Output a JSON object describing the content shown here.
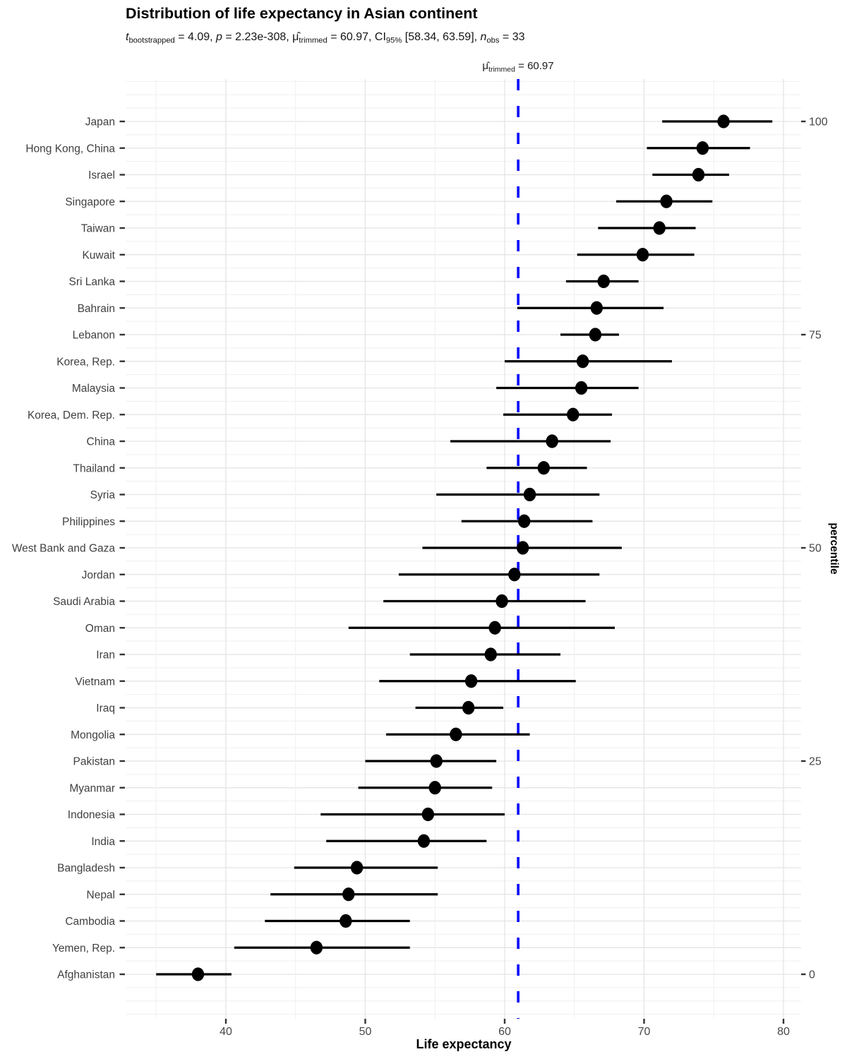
{
  "title": "Distribution of life expectancy in Asian continent",
  "subtitle_segments": [
    {
      "t": "t",
      "s": "i"
    },
    {
      "t": "bootstrapped",
      "s": "sub"
    },
    {
      "t": " = 4.09, "
    },
    {
      "t": "p",
      "s": "i"
    },
    {
      "t": " = 2.23e-308, "
    },
    {
      "t": "μ̂"
    },
    {
      "t": "trimmed",
      "s": "sub"
    },
    {
      "t": " = 60.97, CI"
    },
    {
      "t": "95%",
      "s": "sub"
    },
    {
      "t": " [58.34, 63.59], "
    },
    {
      "t": "n",
      "s": "i"
    },
    {
      "t": "obs",
      "s": "sub"
    },
    {
      "t": " = 33"
    }
  ],
  "reference_label_segments": [
    {
      "t": "μ̂"
    },
    {
      "t": "trimmed",
      "s": "sub"
    },
    {
      "t": " = 60.97"
    }
  ],
  "stats": {
    "t_bootstrapped": 4.09,
    "p_value": "2.23e-308",
    "mu_trimmed": 60.97,
    "ci95_low": 58.34,
    "ci95_high": 63.59,
    "n_obs": 33
  },
  "colors": {
    "reference_line": "#0000ff",
    "point": "#000000",
    "ci_line": "#000000",
    "grid_major": "#e3e3e3",
    "grid_minor": "#efefef",
    "axis_text": "#474747",
    "tick_mark": "#333333",
    "country_label": "#404040"
  },
  "chart_data": {
    "type": "scatter",
    "subtype": "horizontal-dot-plot-with-ci-error-bars",
    "title": "Distribution of life expectancy in Asian continent",
    "xlabel": "Life expectancy",
    "ylabel_right": "percentile",
    "x_ticks": [
      40,
      50,
      60,
      70,
      80
    ],
    "x_minor_gridlines": [
      35,
      45,
      55,
      65,
      75
    ],
    "xlim": [
      32.8,
      81.3
    ],
    "grid": true,
    "legend": "none",
    "right_axis_ticks_percentile": [
      100,
      75,
      50,
      25,
      0
    ],
    "reference_line": {
      "value": 60.97,
      "style": "dashed",
      "color": "#0000ff",
      "label": "μ̂ trimmed = 60.97"
    },
    "points": [
      {
        "label": "Japan",
        "estimate": 75.7,
        "ci_low": 71.3,
        "ci_high": 79.2
      },
      {
        "label": "Hong Kong, China",
        "estimate": 74.2,
        "ci_low": 70.2,
        "ci_high": 77.6
      },
      {
        "label": "Israel",
        "estimate": 73.9,
        "ci_low": 70.6,
        "ci_high": 76.1
      },
      {
        "label": "Singapore",
        "estimate": 71.6,
        "ci_low": 68.0,
        "ci_high": 74.9
      },
      {
        "label": "Taiwan",
        "estimate": 71.1,
        "ci_low": 66.7,
        "ci_high": 73.7
      },
      {
        "label": "Kuwait",
        "estimate": 69.9,
        "ci_low": 65.2,
        "ci_high": 73.6
      },
      {
        "label": "Sri Lanka",
        "estimate": 67.1,
        "ci_low": 64.4,
        "ci_high": 69.6
      },
      {
        "label": "Bahrain",
        "estimate": 66.6,
        "ci_low": 60.9,
        "ci_high": 71.4
      },
      {
        "label": "Lebanon",
        "estimate": 66.5,
        "ci_low": 64.0,
        "ci_high": 68.2
      },
      {
        "label": "Korea, Rep.",
        "estimate": 65.6,
        "ci_low": 60.0,
        "ci_high": 72.0
      },
      {
        "label": "Malaysia",
        "estimate": 65.5,
        "ci_low": 59.4,
        "ci_high": 69.6
      },
      {
        "label": "Korea, Dem. Rep.",
        "estimate": 64.9,
        "ci_low": 59.9,
        "ci_high": 67.7
      },
      {
        "label": "China",
        "estimate": 63.4,
        "ci_low": 56.1,
        "ci_high": 67.6
      },
      {
        "label": "Thailand",
        "estimate": 62.8,
        "ci_low": 58.7,
        "ci_high": 65.9
      },
      {
        "label": "Syria",
        "estimate": 61.8,
        "ci_low": 55.1,
        "ci_high": 66.8
      },
      {
        "label": "Philippines",
        "estimate": 61.4,
        "ci_low": 56.9,
        "ci_high": 66.3
      },
      {
        "label": "West Bank and Gaza",
        "estimate": 61.3,
        "ci_low": 54.1,
        "ci_high": 68.4
      },
      {
        "label": "Jordan",
        "estimate": 60.7,
        "ci_low": 52.4,
        "ci_high": 66.8
      },
      {
        "label": "Saudi Arabia",
        "estimate": 59.8,
        "ci_low": 51.3,
        "ci_high": 65.8
      },
      {
        "label": "Oman",
        "estimate": 59.3,
        "ci_low": 48.8,
        "ci_high": 67.9
      },
      {
        "label": "Iran",
        "estimate": 59.0,
        "ci_low": 53.2,
        "ci_high": 64.0
      },
      {
        "label": "Vietnam",
        "estimate": 57.6,
        "ci_low": 51.0,
        "ci_high": 65.1
      },
      {
        "label": "Iraq",
        "estimate": 57.4,
        "ci_low": 53.6,
        "ci_high": 59.9
      },
      {
        "label": "Mongolia",
        "estimate": 56.5,
        "ci_low": 51.5,
        "ci_high": 61.8
      },
      {
        "label": "Pakistan",
        "estimate": 55.1,
        "ci_low": 50.0,
        "ci_high": 59.4
      },
      {
        "label": "Myanmar",
        "estimate": 55.0,
        "ci_low": 49.5,
        "ci_high": 59.1
      },
      {
        "label": "Indonesia",
        "estimate": 54.5,
        "ci_low": 46.8,
        "ci_high": 60.0
      },
      {
        "label": "India",
        "estimate": 54.2,
        "ci_low": 47.2,
        "ci_high": 58.7
      },
      {
        "label": "Bangladesh",
        "estimate": 49.4,
        "ci_low": 44.9,
        "ci_high": 55.2
      },
      {
        "label": "Nepal",
        "estimate": 48.8,
        "ci_low": 43.2,
        "ci_high": 55.2
      },
      {
        "label": "Cambodia",
        "estimate": 48.6,
        "ci_low": 42.8,
        "ci_high": 53.2
      },
      {
        "label": "Yemen, Rep.",
        "estimate": 46.5,
        "ci_low": 40.6,
        "ci_high": 53.2
      },
      {
        "label": "Afghanistan",
        "estimate": 38.0,
        "ci_low": 35.0,
        "ci_high": 40.4
      }
    ]
  }
}
